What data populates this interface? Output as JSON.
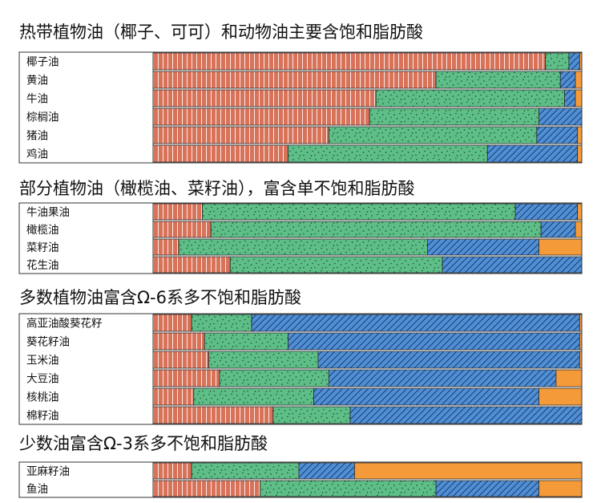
{
  "chart_data": {
    "type": "bar",
    "stacked": "100%",
    "orientation": "horizontal",
    "segments": [
      {
        "key": "saturated",
        "color": "#d8735a",
        "pattern": "vertical-stripes"
      },
      {
        "key": "mono",
        "color": "#5dbf87",
        "pattern": "dots"
      },
      {
        "key": "omega6",
        "color": "#4f8fd8",
        "pattern": "diagonal-hatch"
      },
      {
        "key": "omega3",
        "color": "#f59a38",
        "pattern": "solid"
      }
    ],
    "groups": [
      {
        "title": "热带植物油（椰子、可可）和动物油主要含饱和脂肪酸",
        "rows": [
          {
            "label": "椰子油",
            "values": [
              91.5,
              5.5,
              2.5,
              0.5
            ]
          },
          {
            "label": "黄油",
            "values": [
              66,
              29,
              3.5,
              1.5
            ]
          },
          {
            "label": "牛油",
            "values": [
              52,
              44,
              2.5,
              1.5
            ]
          },
          {
            "label": "棕榈油",
            "values": [
              50.5,
              39.5,
              10,
              0
            ]
          },
          {
            "label": "猪油",
            "values": [
              41,
              48.5,
              9.5,
              1
            ]
          },
          {
            "label": "鸡油",
            "values": [
              31.5,
              46.5,
              21,
              1
            ]
          }
        ]
      },
      {
        "title": "部分植物油（橄榄油、菜籽油），富含单不饱和脂肪酸",
        "rows": [
          {
            "label": "牛油果油",
            "values": [
              11.5,
              73,
              14.5,
              1
            ]
          },
          {
            "label": "橄榄油",
            "values": [
              13.5,
              77,
              8,
              1.5
            ]
          },
          {
            "label": "菜籽油",
            "values": [
              6,
              58,
              26,
              10
            ]
          },
          {
            "label": "花生油",
            "values": [
              18,
              49.5,
              32.5,
              0
            ]
          }
        ]
      },
      {
        "title": "多数植物油富含Ω-6系多不饱和脂肪酸",
        "rows": [
          {
            "label": "高亚油酸葵花籽",
            "values": [
              9,
              14,
              76.5,
              0.5
            ]
          },
          {
            "label": "葵花籽油",
            "values": [
              12,
              19.5,
              68,
              0.5
            ]
          },
          {
            "label": "玉米油",
            "values": [
              13,
              25.5,
              61,
              0.5
            ]
          },
          {
            "label": "大豆油",
            "values": [
              15.5,
              25.5,
              53,
              6
            ]
          },
          {
            "label": "核桃油",
            "values": [
              9.5,
              28,
              52.5,
              10
            ]
          },
          {
            "label": "棉籽油",
            "values": [
              28,
              18,
              54,
              0
            ]
          }
        ]
      },
      {
        "title": "少数油富含Ω-3系多不饱和脂肪酸",
        "rows": [
          {
            "label": "亚麻籽油",
            "values": [
              9,
              25,
              13,
              53
            ]
          },
          {
            "label": "鱼油",
            "values": [
              25,
              41,
              24,
              10
            ]
          }
        ]
      }
    ]
  }
}
